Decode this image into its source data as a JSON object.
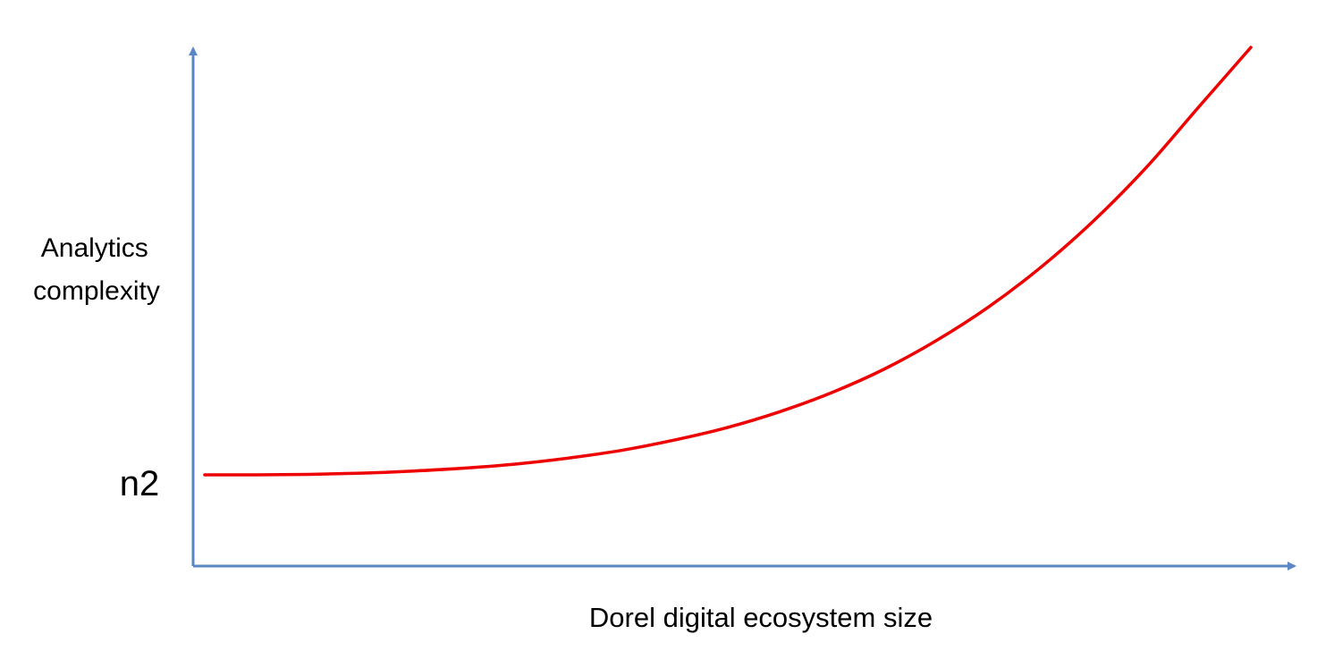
{
  "chart_data": {
    "type": "line",
    "title": "",
    "xlabel": "Dorel digital ecosystem size",
    "ylabel_lines": [
      "Analytics",
      "complexity"
    ],
    "y_tick_labels": [
      "n2"
    ],
    "series": [
      {
        "x": [
          0,
          0.05,
          0.1,
          0.15,
          0.2,
          0.25,
          0.3,
          0.35,
          0.4,
          0.45,
          0.5,
          0.55,
          0.6,
          0.65,
          0.7,
          0.75,
          0.8,
          0.85,
          0.9,
          0.95,
          1.0
        ],
        "y": [
          0.0,
          0.0,
          0.001,
          0.004,
          0.009,
          0.016,
          0.026,
          0.04,
          0.058,
          0.082,
          0.111,
          0.148,
          0.193,
          0.248,
          0.315,
          0.394,
          0.487,
          0.595,
          0.719,
          0.86,
          1.0
        ]
      }
    ],
    "grid": false,
    "legend": false
  },
  "colors": {
    "axis": "#5b87c5",
    "curve": "#ee0000"
  }
}
